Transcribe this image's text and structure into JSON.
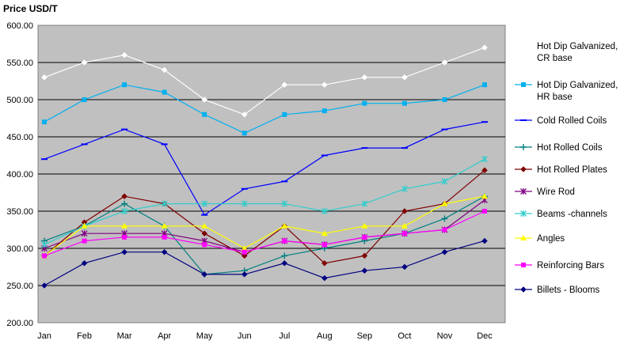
{
  "chart_data": {
    "type": "line",
    "title": "",
    "ylabel": "Price USD/T",
    "xlabel": "",
    "ylim": [
      200,
      600
    ],
    "ytick_step": 50,
    "y_tick_labels": [
      "200.00",
      "250.00",
      "300.00",
      "350.00",
      "400.00",
      "450.00",
      "500.00",
      "550.00",
      "600.00"
    ],
    "grid": true,
    "legend_position": "right",
    "categories": [
      "Jan",
      "Feb",
      "Mar",
      "Apr",
      "May",
      "Jun",
      "Jul",
      "Aug",
      "Sep",
      "Oct",
      "Nov",
      "Dec"
    ],
    "series": [
      {
        "name": "Hot Dip Galvanized, CR base",
        "label_lines": [
          "Hot Dip Galvanized,",
          "CR base"
        ],
        "color": "#FFFFFF",
        "marker": "diamond",
        "values": [
          530,
          550,
          560,
          540,
          500,
          480,
          520,
          520,
          530,
          530,
          550,
          570
        ]
      },
      {
        "name": "Hot Dip Galvanized, HR base",
        "label_lines": [
          "Hot Dip Galvanized,",
          "HR base"
        ],
        "color": "#00B0F0",
        "marker": "square",
        "values": [
          470,
          500,
          520,
          510,
          480,
          455,
          480,
          485,
          495,
          495,
          500,
          520
        ]
      },
      {
        "name": "Cold Rolled Coils",
        "label_lines": [
          "Cold Rolled Coils"
        ],
        "color": "#0000FF",
        "marker": "dash",
        "values": [
          420,
          440,
          460,
          440,
          345,
          380,
          390,
          425,
          435,
          435,
          460,
          470
        ]
      },
      {
        "name": "Hot Rolled Coils",
        "label_lines": [
          "Hot Rolled Coils"
        ],
        "color": "#008080",
        "marker": "plus",
        "values": [
          310,
          330,
          360,
          330,
          265,
          270,
          290,
          300,
          310,
          320,
          340,
          370
        ]
      },
      {
        "name": "Hot Rolled Plates",
        "label_lines": [
          "Hot Rolled Plates"
        ],
        "color": "#800000",
        "marker": "diamond",
        "values": [
          290,
          335,
          370,
          360,
          320,
          290,
          330,
          280,
          290,
          350,
          360,
          405
        ]
      },
      {
        "name": "Wire Rod",
        "label_lines": [
          "Wire Rod"
        ],
        "color": "#800080",
        "marker": "star",
        "values": [
          300,
          320,
          320,
          320,
          310,
          295,
          310,
          305,
          315,
          320,
          325,
          365
        ]
      },
      {
        "name": "Beams -channels",
        "label_lines": [
          "Beams -channels"
        ],
        "color": "#33CCCC",
        "marker": "star",
        "values": [
          305,
          330,
          350,
          360,
          360,
          360,
          360,
          350,
          360,
          380,
          390,
          420
        ]
      },
      {
        "name": "Angles",
        "label_lines": [
          "Angles"
        ],
        "color": "#FFFF00",
        "marker": "triangle",
        "values": [
          290,
          330,
          330,
          330,
          330,
          300,
          330,
          320,
          330,
          330,
          360,
          370
        ]
      },
      {
        "name": "Reinforcing Bars",
        "label_lines": [
          "Reinforcing Bars"
        ],
        "color": "#FF00FF",
        "marker": "square",
        "values": [
          290,
          310,
          315,
          315,
          305,
          295,
          310,
          305,
          315,
          320,
          325,
          350
        ]
      },
      {
        "name": "Billets - Blooms",
        "label_lines": [
          "Billets - Blooms"
        ],
        "color": "#000080",
        "marker": "diamond",
        "values": [
          250,
          280,
          295,
          295,
          265,
          265,
          280,
          260,
          270,
          275,
          295,
          310
        ]
      }
    ]
  }
}
